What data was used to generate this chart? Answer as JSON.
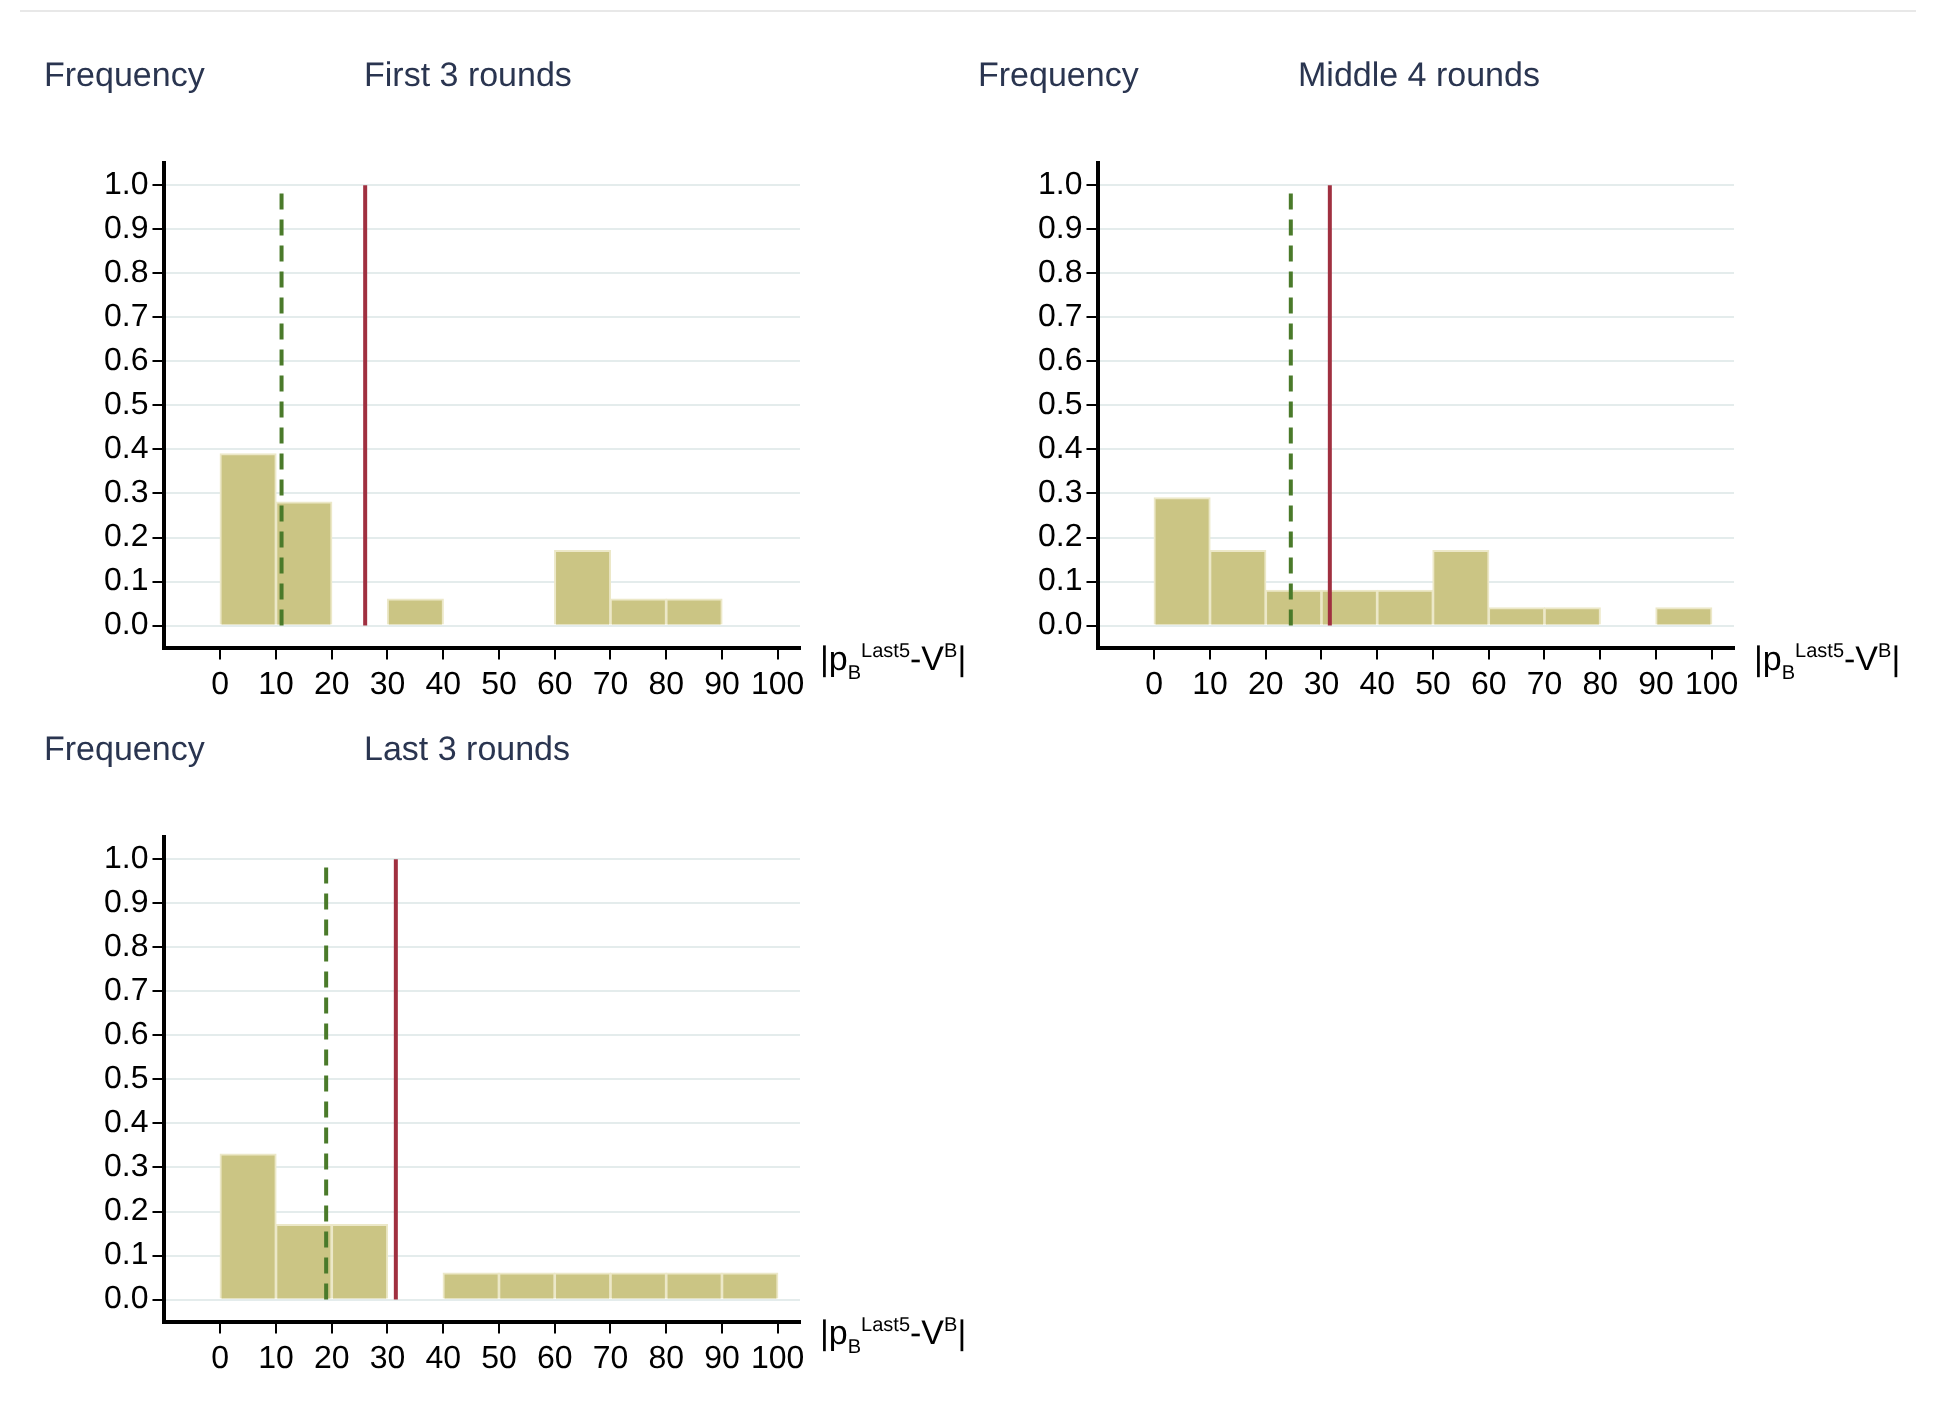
{
  "chart_data": [
    {
      "type": "histogram",
      "title": "First 3 rounds",
      "ylabel": "Frequency",
      "xlabel": "|p$_{B}$$^{Last5}$-V$^{B}$|",
      "bins": [
        0,
        10,
        20,
        30,
        40,
        50,
        60,
        70,
        80,
        90,
        100
      ],
      "values": [
        0.39,
        0.28,
        0,
        0.06,
        0,
        0,
        0.17,
        0.06,
        0.06,
        0
      ],
      "color": "#cbc584",
      "xlim": [
        -10,
        104
      ],
      "xticks": [
        0,
        10,
        20,
        30,
        40,
        50,
        60,
        70,
        80,
        90,
        100
      ],
      "ylim": [
        -0.05,
        1.05
      ],
      "yticks": [
        {
          "value": 0,
          "label": "0.0"
        },
        {
          "value": 0.1,
          "label": "0.1"
        },
        {
          "value": 0.2,
          "label": "0.2"
        },
        {
          "value": 0.3,
          "label": "0.3"
        },
        {
          "value": 0.4,
          "label": "0.4"
        },
        {
          "value": 0.5,
          "label": "0.5"
        },
        {
          "value": 0.6,
          "label": "0.6"
        },
        {
          "value": 0.7,
          "label": "0.7"
        },
        {
          "value": 0.8,
          "label": "0.8"
        },
        {
          "value": 0.9,
          "label": "0.9"
        },
        {
          "value": 1,
          "label": "1.0"
        }
      ],
      "grid": "y",
      "ref_lines": [
        {
          "axis": "x",
          "value": 11,
          "color": "#4a7a2a",
          "line_style": "dashed"
        },
        {
          "axis": "x",
          "value": 26,
          "color": "#a03040",
          "line_style": "solid"
        }
      ]
    },
    {
      "type": "histogram",
      "title": "Middle 4 rounds",
      "ylabel": "Frequency",
      "xlabel": "|p$_{B}$$^{Last5}$-V$^{B}$|",
      "bins": [
        0,
        10,
        20,
        30,
        40,
        50,
        60,
        70,
        80,
        90,
        100
      ],
      "values": [
        0.29,
        0.17,
        0.08,
        0.08,
        0.08,
        0.17,
        0.04,
        0.04,
        0,
        0.04
      ],
      "color": "#cbc584",
      "xlim": [
        -10,
        104
      ],
      "xticks": [
        0,
        10,
        20,
        30,
        40,
        50,
        60,
        70,
        80,
        90,
        100
      ],
      "ylim": [
        -0.05,
        1.05
      ],
      "yticks": [
        {
          "value": 0,
          "label": "0.0"
        },
        {
          "value": 0.1,
          "label": "0.1"
        },
        {
          "value": 0.2,
          "label": "0.2"
        },
        {
          "value": 0.3,
          "label": "0.3"
        },
        {
          "value": 0.4,
          "label": "0.4"
        },
        {
          "value": 0.5,
          "label": "0.5"
        },
        {
          "value": 0.6,
          "label": "0.6"
        },
        {
          "value": 0.7,
          "label": "0.7"
        },
        {
          "value": 0.8,
          "label": "0.8"
        },
        {
          "value": 0.9,
          "label": "0.9"
        },
        {
          "value": 1,
          "label": "1.0"
        }
      ],
      "grid": "y",
      "ref_lines": [
        {
          "axis": "x",
          "value": 24.5,
          "color": "#4a7a2a",
          "line_style": "dashed"
        },
        {
          "axis": "x",
          "value": 31.5,
          "color": "#a03040",
          "line_style": "solid"
        }
      ]
    },
    {
      "type": "histogram",
      "title": "Last 3 rounds",
      "ylabel": "Frequency",
      "xlabel": "|p$_{B}$$^{Last5}$-V$^{B}$|",
      "bins": [
        0,
        10,
        20,
        30,
        40,
        50,
        60,
        70,
        80,
        90,
        100
      ],
      "values": [
        0.33,
        0.17,
        0.17,
        0,
        0.06,
        0.06,
        0.06,
        0.06,
        0.06,
        0.06
      ],
      "color": "#cbc584",
      "xlim": [
        -10,
        104
      ],
      "xticks": [
        0,
        10,
        20,
        30,
        40,
        50,
        60,
        70,
        80,
        90,
        100
      ],
      "ylim": [
        -0.05,
        1.05
      ],
      "yticks": [
        {
          "value": 0,
          "label": "0.0"
        },
        {
          "value": 0.1,
          "label": "0.1"
        },
        {
          "value": 0.2,
          "label": "0.2"
        },
        {
          "value": 0.3,
          "label": "0.3"
        },
        {
          "value": 0.4,
          "label": "0.4"
        },
        {
          "value": 0.5,
          "label": "0.5"
        },
        {
          "value": 0.6,
          "label": "0.6"
        },
        {
          "value": 0.7,
          "label": "0.7"
        },
        {
          "value": 0.8,
          "label": "0.8"
        },
        {
          "value": 0.9,
          "label": "0.9"
        },
        {
          "value": 1,
          "label": "1.0"
        }
      ],
      "grid": "y",
      "ref_lines": [
        {
          "axis": "x",
          "value": 19,
          "color": "#4a7a2a",
          "line_style": "dashed"
        },
        {
          "axis": "x",
          "value": 31.5,
          "color": "#a03040",
          "line_style": "solid"
        }
      ]
    }
  ]
}
